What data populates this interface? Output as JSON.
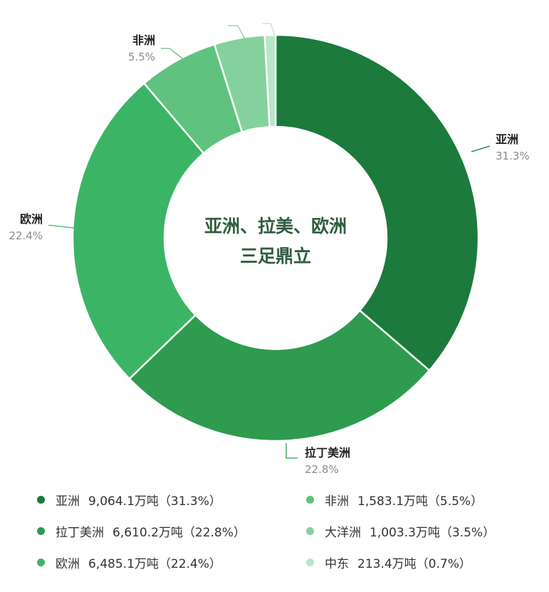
{
  "chart_data": {
    "type": "pie",
    "variant": "donut",
    "center_text": [
      "亚洲、拉美、欧洲",
      "三足鼎立"
    ],
    "unit": "万吨",
    "slices": [
      {
        "name": "亚洲",
        "value": 9064.1,
        "value_label": "9,064.1万吨",
        "percent_label": "31.3%",
        "color": "#1c7a3d"
      },
      {
        "name": "拉丁美洲",
        "value": 6610.2,
        "value_label": "6,610.2万吨",
        "percent_label": "22.8%",
        "color": "#2e9b4f"
      },
      {
        "name": "欧洲",
        "value": 6485.1,
        "value_label": "6,485.1万吨",
        "percent_label": "22.4%",
        "color": "#3cb466"
      },
      {
        "name": "非洲",
        "value": 1583.1,
        "value_label": "1,583.1万吨",
        "percent_label": "5.5%",
        "color": "#5fc27e"
      },
      {
        "name": "大洋洲",
        "value": 1003.3,
        "value_label": "1,003.3万吨",
        "percent_label": "3.5%",
        "color": "#84d19e"
      },
      {
        "name": "中东",
        "value": 213.4,
        "value_label": "213.4万吨",
        "percent_label": "0.7%",
        "color": "#b9e6c8"
      }
    ],
    "outside_labels": [
      "亚洲",
      "拉丁美洲",
      "欧洲",
      "非洲"
    ],
    "legend_position": "bottom"
  }
}
